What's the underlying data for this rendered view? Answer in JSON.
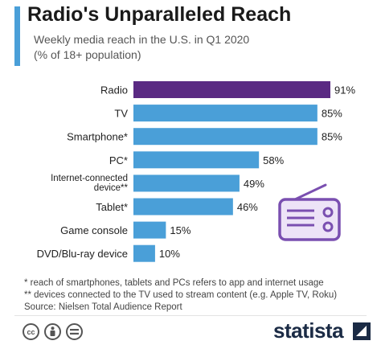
{
  "header": {
    "title": "Radio's Unparalleled Reach",
    "subtitle_line1": "Weekly media reach in the U.S. in Q1 2020",
    "subtitle_line2": "(% of 18+ population)"
  },
  "chart_data": {
    "type": "bar",
    "orientation": "horizontal",
    "categories": [
      [
        "Radio"
      ],
      [
        "TV"
      ],
      [
        "Smartphone*"
      ],
      [
        "PC*"
      ],
      [
        "Internet-connected",
        "device**"
      ],
      [
        "Tablet*"
      ],
      [
        "Game console"
      ],
      [
        "DVD/Blu-ray device"
      ]
    ],
    "values": [
      91,
      85,
      85,
      58,
      49,
      46,
      15,
      10
    ],
    "value_labels": [
      "91%",
      "85%",
      "85%",
      "58%",
      "49%",
      "46%",
      "15%",
      "10%"
    ],
    "unit": "%",
    "colors": {
      "highlight": "#5a2a83",
      "default": "#4a9fd8"
    },
    "highlight_index": 0
  },
  "footnotes": {
    "note1": "*   reach of smartphones, tablets and PCs refers to app and internet usage",
    "note2": "** devices connected to the TV used to stream content (e.g. Apple TV, Roku)",
    "source": "Source: Nielsen Total Audience Report"
  },
  "footer": {
    "brand": "statista",
    "icons": [
      "creative-commons-icon",
      "attribution-icon",
      "no-derivatives-icon"
    ]
  },
  "illustration": {
    "icon": "radio-icon",
    "color": "#7a4fb0"
  }
}
